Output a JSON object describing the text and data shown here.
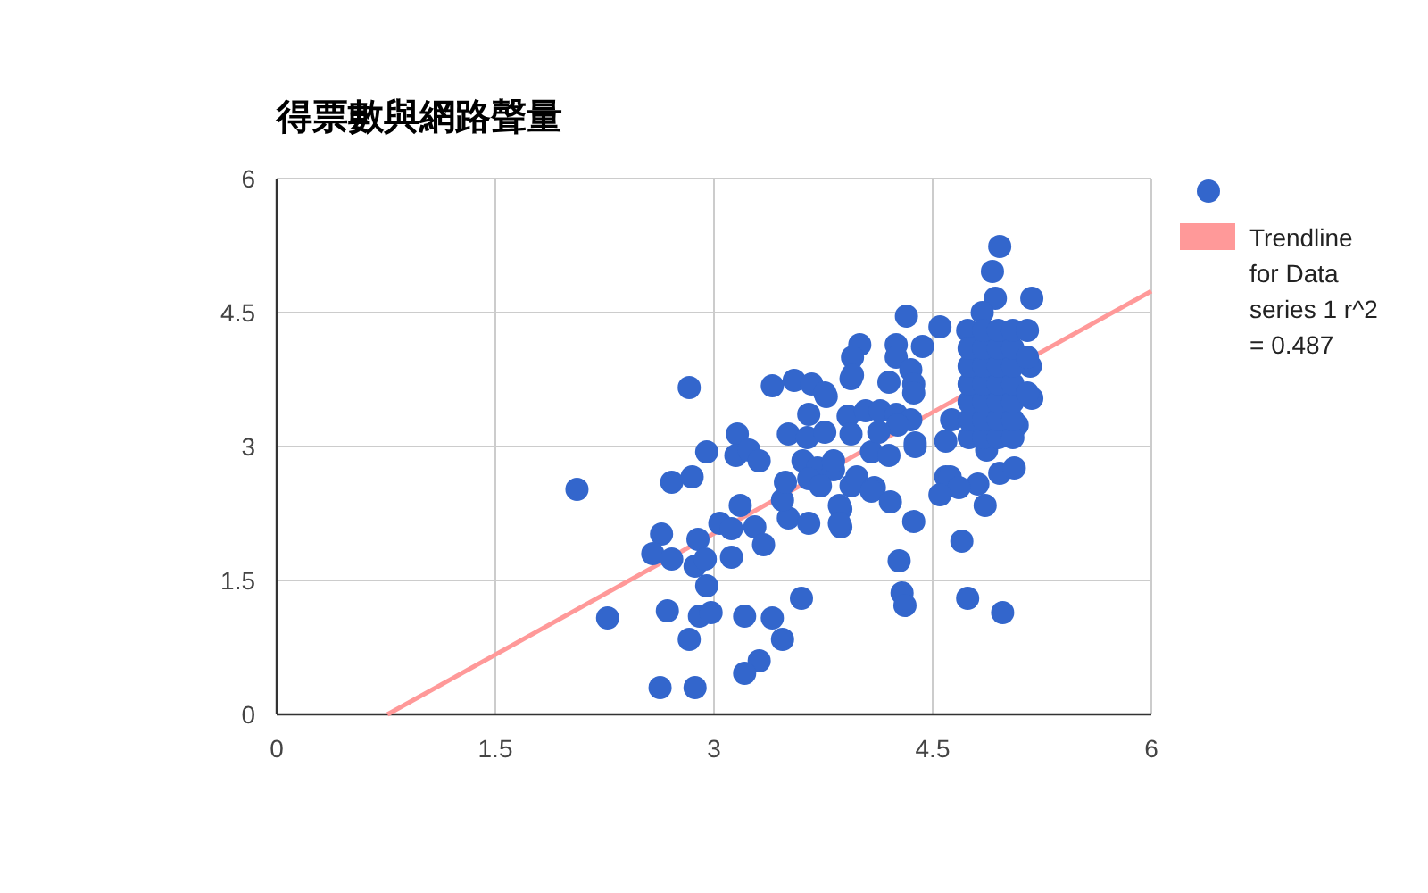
{
  "chart_data": {
    "type": "scatter",
    "title": "得票數與網路聲量",
    "xlim": [
      0,
      6
    ],
    "ylim": [
      0,
      6
    ],
    "xticks": [
      0,
      1.5,
      3,
      4.5,
      6
    ],
    "yticks": [
      0,
      1.5,
      3,
      4.5,
      6
    ],
    "grid": true,
    "legend": "top right",
    "series": [
      {
        "marker": "circle",
        "color": "#3366cc",
        "x": [
          2.83,
          2.06,
          2.27,
          2.63,
          2.87,
          2.71,
          2.85,
          2.95,
          2.64,
          2.58,
          2.71,
          2.89,
          2.87,
          2.94,
          3.12,
          2.95,
          2.68,
          2.9,
          2.98,
          2.83,
          3.21,
          3.4,
          3.47,
          3.31,
          3.21,
          3.6,
          3.04,
          3.12,
          3.18,
          3.28,
          3.34,
          3.51,
          3.65,
          3.87,
          3.87,
          3.47,
          3.49,
          3.16,
          3.15,
          3.24,
          3.31,
          3.4,
          3.55,
          3.67,
          3.77,
          3.65,
          3.51,
          3.64,
          3.76,
          3.61,
          3.71,
          3.82,
          3.65,
          3.73,
          3.92,
          3.94,
          3.94,
          3.94,
          4.96,
          4.91,
          5.18,
          4.93,
          4.84,
          4.32,
          4.55,
          4.74,
          4.0,
          4.25,
          4.43,
          3.95,
          4.25,
          3.95,
          4.2,
          4.35,
          4.37,
          4.37,
          3.76,
          4.04,
          4.14,
          4.25,
          4.35,
          4.26,
          4.08,
          4.2,
          4.38,
          4.59,
          4.63,
          5.08,
          5.18,
          5.17,
          4.87,
          4.59,
          4.96,
          5.06,
          4.81,
          3.98,
          4.1,
          3.82,
          4.62,
          4.68,
          4.86,
          4.08,
          4.21,
          3.86,
          3.86,
          4.37,
          4.7,
          4.27,
          4.29,
          4.31,
          4.74,
          4.98,
          4.38,
          4.13,
          4.55,
          4.75,
          4.75,
          4.75,
          4.75,
          4.75,
          4.75,
          4.85,
          4.85,
          4.85,
          4.85,
          4.85,
          4.85,
          4.85,
          4.95,
          4.95,
          4.95,
          4.95,
          4.95,
          4.95,
          4.95,
          5.05,
          5.05,
          5.05,
          5.05,
          5.05,
          5.05,
          5.05,
          5.15,
          5.15,
          5.15
        ],
        "values": [
          3.66,
          2.52,
          1.08,
          0.3,
          0.3,
          2.6,
          2.66,
          2.94,
          2.02,
          1.8,
          1.74,
          1.96,
          1.66,
          1.74,
          1.76,
          1.44,
          1.16,
          1.1,
          1.14,
          0.84,
          1.1,
          1.08,
          0.84,
          0.6,
          0.46,
          1.3,
          2.14,
          2.08,
          2.34,
          2.1,
          1.9,
          2.2,
          2.14,
          2.1,
          2.3,
          2.4,
          2.6,
          3.14,
          2.9,
          2.96,
          2.84,
          3.68,
          3.74,
          3.7,
          3.56,
          3.36,
          3.14,
          3.1,
          3.16,
          2.84,
          2.76,
          2.74,
          2.64,
          2.56,
          3.34,
          3.76,
          3.14,
          2.56,
          5.24,
          4.96,
          4.66,
          4.66,
          4.5,
          4.46,
          4.34,
          4.3,
          4.14,
          4.14,
          4.12,
          4.0,
          4.0,
          3.8,
          3.72,
          3.86,
          3.7,
          3.6,
          3.6,
          3.4,
          3.4,
          3.36,
          3.3,
          3.24,
          2.94,
          2.9,
          3.0,
          3.06,
          3.3,
          3.24,
          3.54,
          3.9,
          2.96,
          2.66,
          2.7,
          2.76,
          2.58,
          2.66,
          2.54,
          2.84,
          2.66,
          2.54,
          2.34,
          2.5,
          2.38,
          2.34,
          2.14,
          2.16,
          1.94,
          1.72,
          1.36,
          1.22,
          1.3,
          1.14,
          3.04,
          3.16,
          2.46,
          3.1,
          3.3,
          3.5,
          3.7,
          3.9,
          4.1,
          3.1,
          3.3,
          3.5,
          3.7,
          3.9,
          4.1,
          4.3,
          3.1,
          3.3,
          3.5,
          3.7,
          3.9,
          4.1,
          4.3,
          3.1,
          3.3,
          3.5,
          3.7,
          3.9,
          4.1,
          4.3,
          3.6,
          4.0,
          4.3
        ]
      },
      {
        "type": "line",
        "name": "Trendline for Data series 1 r^2 = 0.487",
        "color": "#ff9999",
        "x": [
          0.76,
          6
        ],
        "values": [
          0,
          4.74
        ]
      }
    ]
  }
}
